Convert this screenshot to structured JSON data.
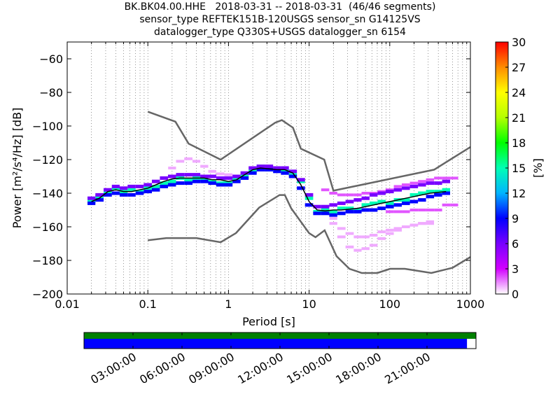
{
  "chart_data": {
    "type": "heatmap",
    "title_lines": [
      "BK.BK04.00.HHE   2018-03-31 -- 2018-03-31  (46/46 segments)",
      "sensor_type REFTEK151B-120USGS sensor_sn G14125VS",
      "datalogger_type Q330S+USGS datalogger_sn 6154"
    ],
    "xlabel": "Period [s]",
    "ylabel": "Power [m²/s⁴/Hz] [dB]",
    "x_scale": "log",
    "xlim": [
      0.01,
      1000
    ],
    "ylim": [
      -200,
      -50
    ],
    "x_ticks": [
      0.01,
      0.1,
      1,
      10,
      100,
      1000
    ],
    "x_tick_labels": [
      "0.01",
      "0.1",
      "1",
      "10",
      "100",
      "1000"
    ],
    "y_ticks": [
      -200,
      -180,
      -160,
      -140,
      -120,
      -100,
      -80,
      -60
    ],
    "y_tick_labels": [
      "−200",
      "−180",
      "−160",
      "−140",
      "−120",
      "−100",
      "−80",
      "−60"
    ],
    "grid": "dotted, vertical at minor log decades",
    "colorbar": {
      "label": "[%]",
      "range": [
        0,
        30
      ],
      "ticks": [
        0,
        3,
        6,
        9,
        12,
        15,
        18,
        21,
        24,
        27,
        30
      ],
      "tick_labels": [
        "0",
        "3",
        "6",
        "9",
        "12",
        "15",
        "18",
        "21",
        "24",
        "27",
        "30"
      ],
      "colormap": "pqlx"
    },
    "nhnm": {
      "name": "NHNM",
      "x": [
        0.1,
        0.22,
        0.32,
        0.8,
        3.8,
        4.6,
        6.3,
        7.9,
        15.4,
        20,
        354.8,
        1000
      ],
      "y": [
        -91.5,
        -97.4,
        -110.5,
        -120,
        -98,
        -96.5,
        -101,
        -113.5,
        -120,
        -138.5,
        -126,
        -112.5
      ]
    },
    "nlnm": {
      "name": "NLNM",
      "x": [
        0.1,
        0.17,
        0.4,
        0.8,
        1.24,
        2.4,
        4.3,
        5.0,
        6.0,
        10.0,
        12.0,
        15.6,
        21.9,
        31.6,
        45,
        70,
        101,
        154,
        328,
        600,
        1000
      ],
      "y": [
        -168,
        -166.7,
        -166.7,
        -169.2,
        -163.7,
        -148.6,
        -141.1,
        -141.1,
        -149,
        -163.8,
        -166.2,
        -162.1,
        -177.5,
        -185,
        -187.5,
        -187.5,
        -185,
        -185,
        -187.5,
        -184.4,
        -178
      ]
    },
    "median": {
      "x": [
        0.02,
        0.025,
        0.032,
        0.04,
        0.05,
        0.063,
        0.079,
        0.1,
        0.126,
        0.158,
        0.2,
        0.25,
        0.32,
        0.4,
        0.5,
        0.63,
        0.79,
        1.0,
        1.26,
        1.58,
        2.0,
        2.5,
        3.2,
        4.0,
        5.0,
        6.3,
        7.9,
        10,
        12.6,
        15.8,
        20,
        25,
        32,
        40,
        50,
        63,
        79,
        100,
        126,
        158,
        200,
        251,
        316,
        398,
        500
      ],
      "y": [
        -145,
        -143,
        -139,
        -138,
        -139,
        -139,
        -138,
        -137,
        -135,
        -133,
        -131.5,
        -131,
        -131,
        -131,
        -131,
        -132,
        -132,
        -133,
        -132,
        -129,
        -126,
        -125,
        -125.5,
        -126,
        -126,
        -128,
        -135,
        -145,
        -150,
        -150.5,
        -150,
        -150,
        -149.5,
        -149,
        -148,
        -147,
        -146,
        -145,
        -144,
        -143,
        -142,
        -141,
        -140,
        -139.5,
        -139
      ]
    },
    "mode_series": [
      {
        "x": [
          0.02,
          0.025,
          0.032,
          0.04,
          0.05,
          0.063,
          0.079,
          0.1,
          0.126,
          0.158,
          0.2,
          0.25,
          0.32,
          0.4,
          0.5,
          0.63,
          0.79,
          1.0,
          1.26,
          1.58,
          2.0,
          2.5,
          3.2,
          4.0,
          5.0,
          6.3,
          7.9,
          10,
          12.6,
          15.8,
          20,
          25,
          32,
          40,
          50,
          63,
          79,
          100,
          126,
          158,
          200,
          251,
          316,
          398,
          500
        ],
        "y": [
          -145,
          -142,
          -140,
          -137,
          -139,
          -138,
          -139,
          -137,
          -136,
          -134,
          -133,
          -131,
          -132,
          -131,
          -132,
          -133,
          -134,
          -134,
          -131,
          -130,
          -127,
          -124,
          -126,
          -125,
          -127,
          -129,
          -133,
          -143,
          -151,
          -150,
          -151,
          -149,
          -149,
          -150,
          -147,
          -146,
          -145,
          -146,
          -144,
          -144,
          -141,
          -140,
          -139,
          -139,
          -138
        ],
        "percent": 15
      },
      {
        "x": [
          0.02,
          0.025,
          0.032,
          0.04,
          0.05,
          0.063,
          0.079,
          0.1,
          0.126,
          0.158,
          0.2,
          0.25,
          0.32,
          0.4,
          0.5,
          0.63,
          0.79,
          1.0,
          1.26,
          1.58,
          2.0,
          2.5,
          3.2,
          4.0,
          5.0,
          6.3,
          7.9,
          10,
          12.6,
          15.8,
          20,
          25,
          32,
          40,
          50,
          63,
          79,
          100,
          126,
          158,
          200,
          251,
          316,
          398,
          500
        ],
        "y": [
          -146,
          -144,
          -141,
          -140,
          -141,
          -141,
          -140,
          -139,
          -138,
          -136,
          -135,
          -134,
          -134,
          -133,
          -133,
          -134,
          -135,
          -135,
          -133,
          -131,
          -128,
          -126,
          -126,
          -127,
          -128,
          -130,
          -137,
          -147,
          -152,
          -152,
          -153,
          -152,
          -151,
          -151,
          -150,
          -150,
          -149,
          -148,
          -147,
          -146,
          -145,
          -144,
          -142,
          -141,
          -140
        ],
        "percent": 9
      },
      {
        "x": [
          0.02,
          0.025,
          0.032,
          0.04,
          0.05,
          0.063,
          0.079,
          0.1,
          0.126,
          0.158,
          0.2,
          0.25,
          0.32,
          0.4,
          0.5,
          0.63,
          0.79,
          1.0,
          1.26,
          1.58,
          2.0,
          2.5,
          3.2,
          4.0,
          5.0,
          6.3,
          7.9,
          10,
          12.6,
          15.8,
          20,
          25,
          32,
          40,
          50,
          63,
          79,
          100,
          126,
          158,
          200,
          251,
          316,
          398,
          500
        ],
        "y": [
          -143,
          -141,
          -138,
          -136,
          -137,
          -136,
          -136,
          -135,
          -133,
          -131,
          -130,
          -129,
          -129,
          -129,
          -130,
          -130,
          -131,
          -131,
          -130,
          -128,
          -125,
          -124,
          -124,
          -125,
          -125,
          -127,
          -132,
          -141,
          -148,
          -148,
          -147,
          -146,
          -145,
          -144,
          -143,
          -141,
          -140,
          -139,
          -138,
          -137,
          -136,
          -135,
          -134,
          -134,
          -133
        ],
        "percent": 6
      }
    ],
    "outlier_series": [
      {
        "x": [
          0.2,
          0.25,
          0.32,
          0.4,
          0.5,
          0.63,
          0.79,
          1.0,
          1.26,
          1.58,
          2.0
        ],
        "y": [
          -125,
          -121,
          -119.5,
          -121,
          -124,
          -127,
          -128.5,
          -129,
          -130,
          -129,
          -127
        ],
        "percent": 1
      },
      {
        "x": [
          20,
          25,
          32,
          40,
          50,
          63,
          79,
          100,
          126,
          158,
          200,
          251,
          316
        ],
        "y": [
          -158,
          -166,
          -172,
          -174,
          -173,
          -171,
          -167,
          -164,
          -162,
          -160,
          -159,
          -158,
          -158
        ],
        "percent": 1
      },
      {
        "x": [
          20,
          25,
          32,
          40,
          50,
          63,
          79,
          100,
          126,
          158,
          200,
          251,
          316
        ],
        "y": [
          -155,
          -161,
          -164,
          -166,
          -166,
          -165,
          -163,
          -162,
          -161,
          -160,
          -159,
          -158,
          -157
        ],
        "percent": 1
      },
      {
        "x": [
          15.8,
          20,
          25,
          32,
          40,
          50,
          63,
          79,
          100,
          126,
          158,
          200,
          251,
          316,
          398,
          500,
          630
        ],
        "y": [
          -138,
          -140,
          -141,
          -141,
          -141,
          -140,
          -140,
          -139,
          -138,
          -136,
          -135,
          -134,
          -133,
          -132,
          -131,
          -131,
          -131
        ],
        "percent": 2
      },
      {
        "x": [
          100,
          126,
          158,
          200,
          251,
          316,
          398,
          500,
          630
        ],
        "y": [
          -151,
          -151,
          -151,
          -150,
          -150,
          -150,
          -150,
          -147,
          -147
        ],
        "percent": 2
      }
    ],
    "timeline": {
      "tick_labels": [
        "03:00:00",
        "06:00:00",
        "09:00:00",
        "12:00:00",
        "15:00:00",
        "18:00:00",
        "21:00:00"
      ],
      "tick_hours": [
        3,
        6,
        9,
        12,
        15,
        18,
        21
      ],
      "range_hours": [
        0,
        24
      ],
      "data_bar_color": "#008000",
      "used_bar_color": "#0000ff",
      "used_fraction": 0.977
    }
  }
}
